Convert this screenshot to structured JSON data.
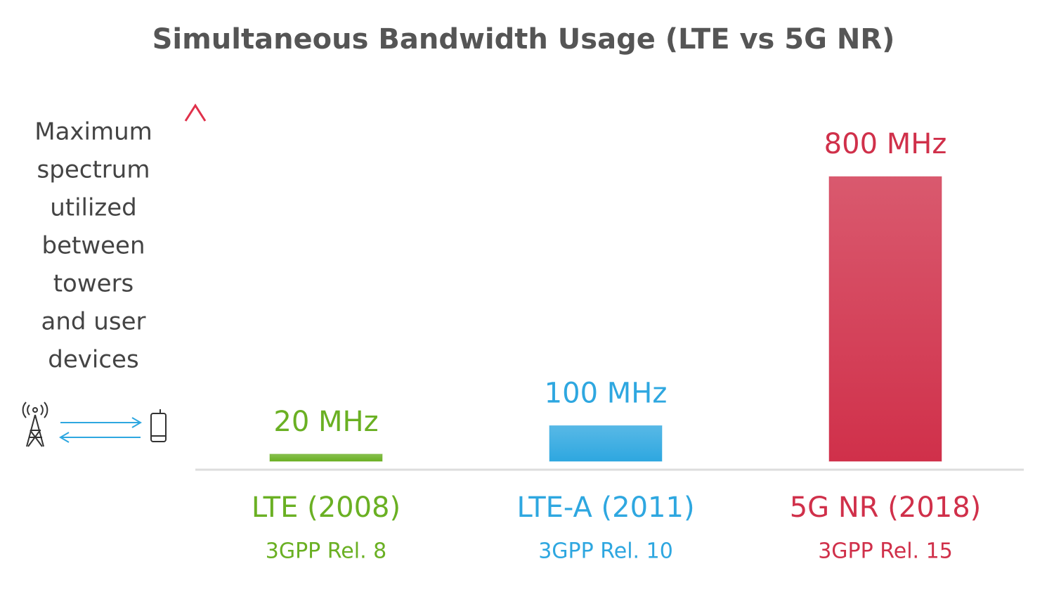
{
  "chart_data": {
    "type": "bar",
    "title": "Simultaneous Bandwidth Usage (LTE vs 5G NR)",
    "y_label_lines": [
      "Maximum",
      "spectrum",
      "utilized",
      "between",
      "towers",
      "and user",
      "devices"
    ],
    "categories": [
      "LTE (2008)",
      "LTE-A (2011)",
      "5G NR (2018)"
    ],
    "sublabels": [
      "3GPP Rel. 8",
      "3GPP Rel. 10",
      "3GPP Rel. 15"
    ],
    "values": [
      20,
      100,
      800
    ],
    "value_labels": [
      "20 MHz",
      "100 MHz",
      "800 MHz"
    ],
    "colors": [
      "#6ab023",
      "#2ea7e0",
      "#d0304a"
    ],
    "ylim": [
      0,
      1000
    ]
  }
}
